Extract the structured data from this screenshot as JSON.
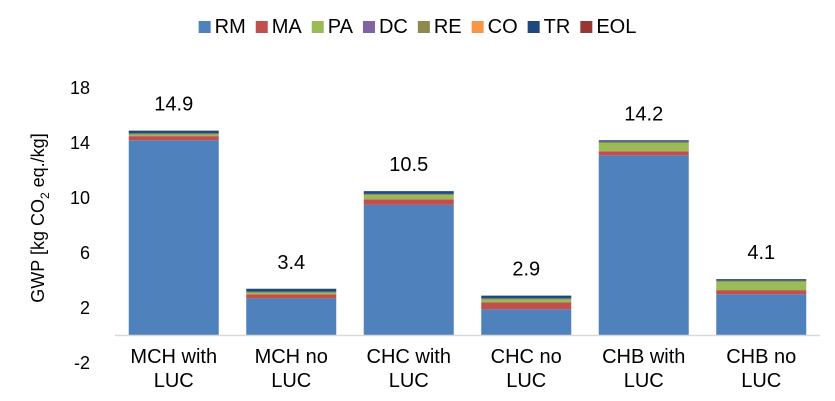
{
  "chart_data": {
    "type": "bar",
    "stacked": true,
    "categories": [
      [
        "MCH with",
        "LUC"
      ],
      [
        "MCH no",
        "LUC"
      ],
      [
        "CHC with",
        "LUC"
      ],
      [
        "CHC no",
        "LUC"
      ],
      [
        "CHB with",
        "LUC"
      ],
      [
        "CHB no",
        "LUC"
      ]
    ],
    "totals_labels": [
      "14.9",
      "3.4",
      "10.5",
      "2.9",
      "14.2",
      "4.1"
    ],
    "series": [
      {
        "name": "RM",
        "color": "#4f81bd",
        "values": [
          14.2,
          2.7,
          9.5,
          1.9,
          13.1,
          3.0
        ]
      },
      {
        "name": "MA",
        "color": "#c0504d",
        "values": [
          0.3,
          0.3,
          0.4,
          0.5,
          0.3,
          0.3
        ]
      },
      {
        "name": "PA",
        "color": "#9bbb59",
        "values": [
          0.1,
          0.1,
          0.3,
          0.2,
          0.6,
          0.6
        ]
      },
      {
        "name": "DC",
        "color": "#8064a2",
        "values": [
          0.0,
          0.0,
          0.0,
          0.0,
          0.0,
          0.0
        ]
      },
      {
        "name": "RE",
        "color": "#8c8a4f",
        "values": [
          0.1,
          0.1,
          0.1,
          0.1,
          0.1,
          0.1
        ]
      },
      {
        "name": "CO",
        "color": "#f79646",
        "values": [
          0.0,
          0.0,
          0.0,
          0.0,
          0.0,
          0.0
        ]
      },
      {
        "name": "TR",
        "color": "#1f497d",
        "values": [
          0.2,
          0.2,
          0.2,
          0.2,
          0.1,
          0.1
        ]
      },
      {
        "name": "EOL",
        "color": "#953735",
        "values": [
          0.0,
          0.0,
          0.0,
          0.0,
          0.0,
          0.0
        ]
      }
    ],
    "ylabel_parts": [
      "GWP [kg CO",
      "2",
      " eq./kg]"
    ],
    "yticks": [
      -2,
      2,
      6,
      10,
      14,
      18
    ],
    "ylim": [
      -2,
      20
    ],
    "legend_position": "top",
    "grid": false
  }
}
